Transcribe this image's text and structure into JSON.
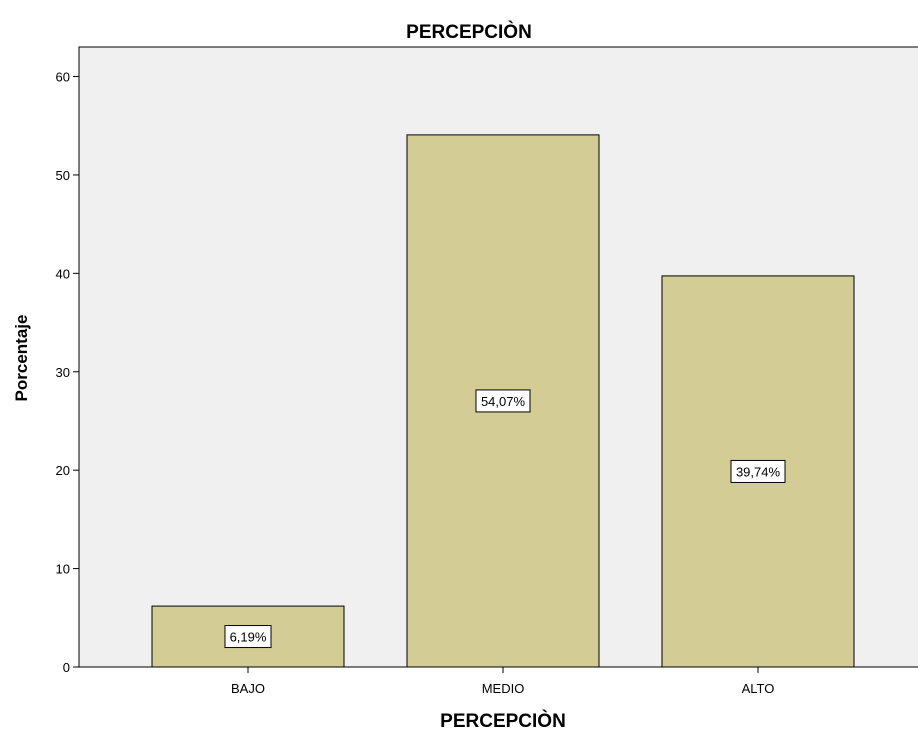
{
  "chart_data": {
    "type": "bar",
    "title": "PERCEPCIÒN",
    "xlabel": "PERCEPCIÒN",
    "ylabel": "Porcentaje",
    "categories": [
      "BAJO",
      "MEDIO",
      "ALTO"
    ],
    "values": [
      6.19,
      54.07,
      39.74
    ],
    "data_labels": [
      "6,19%",
      "54,07%",
      "39,74%"
    ],
    "ylim": [
      0,
      63
    ],
    "yticks": [
      0,
      10,
      20,
      30,
      40,
      50,
      60
    ],
    "grid": false,
    "legend": "none",
    "colors": {
      "bar_fill": "#d3cd95",
      "bar_stroke": "#000000",
      "plot_bg": "#f0f0f0",
      "label_bg": "#ffffff"
    }
  }
}
